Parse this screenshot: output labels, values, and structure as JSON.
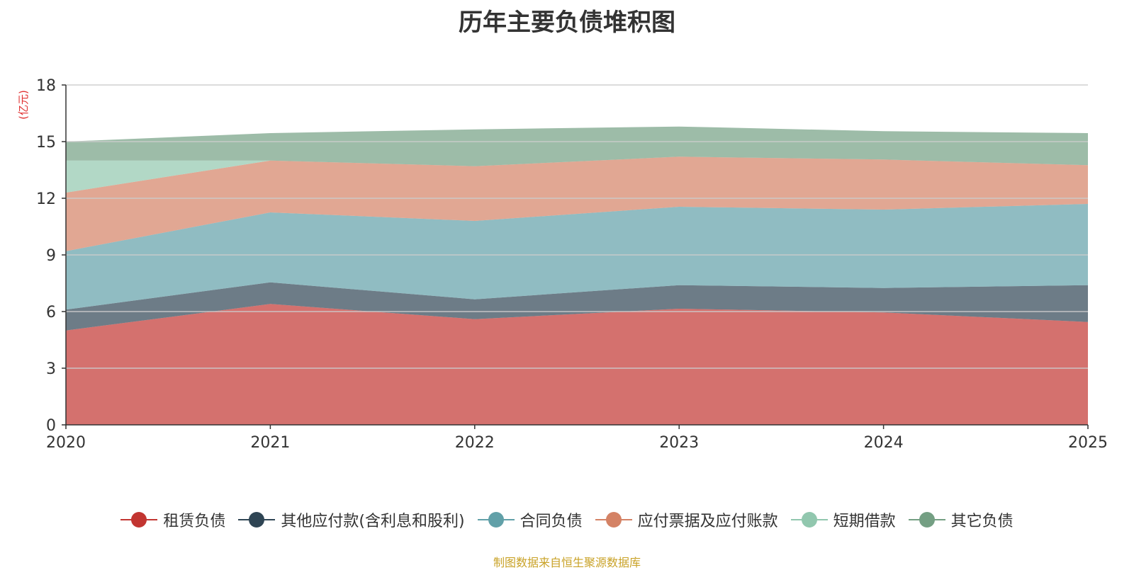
{
  "title": "历年主要负债堆积图",
  "source_note": "制图数据来自恒生聚源数据库",
  "colors": {
    "title": "#333333",
    "axis": "#333333",
    "grid": "#cccccc",
    "y_unit": "#e03030",
    "source": "#c9a227"
  },
  "chart_data": {
    "type": "area",
    "stacked": true,
    "title": "历年主要负债堆积图",
    "y_unit": "(亿元)",
    "x": [
      "2020",
      "2021",
      "2022",
      "2023",
      "2024",
      "2025"
    ],
    "ylim": [
      0,
      18
    ],
    "yticks": [
      0,
      3,
      6,
      9,
      12,
      15,
      18
    ],
    "grid": true,
    "legend_position": "bottom",
    "series": [
      {
        "name": "租赁负债",
        "color": "#c23531",
        "values": [
          5.0,
          6.4,
          5.6,
          6.15,
          5.95,
          5.45
        ]
      },
      {
        "name": "其他应付款(含利息和股利)",
        "color": "#2f4554",
        "values": [
          1.1,
          1.15,
          1.05,
          1.25,
          1.3,
          1.95
        ]
      },
      {
        "name": "合同负债",
        "color": "#61a0a8",
        "values": [
          3.1,
          3.7,
          4.15,
          4.15,
          4.15,
          4.3
        ]
      },
      {
        "name": "应付票据及应付账款",
        "color": "#d48265",
        "values": [
          3.1,
          2.75,
          2.9,
          2.65,
          2.65,
          2.05
        ]
      },
      {
        "name": "短期借款",
        "color": "#91c7ae",
        "values": [
          1.7,
          0,
          0,
          0,
          0,
          0
        ]
      },
      {
        "name": "其它负债",
        "color": "#749f83",
        "values": [
          1.0,
          1.45,
          1.95,
          1.6,
          1.5,
          1.7
        ]
      }
    ]
  }
}
